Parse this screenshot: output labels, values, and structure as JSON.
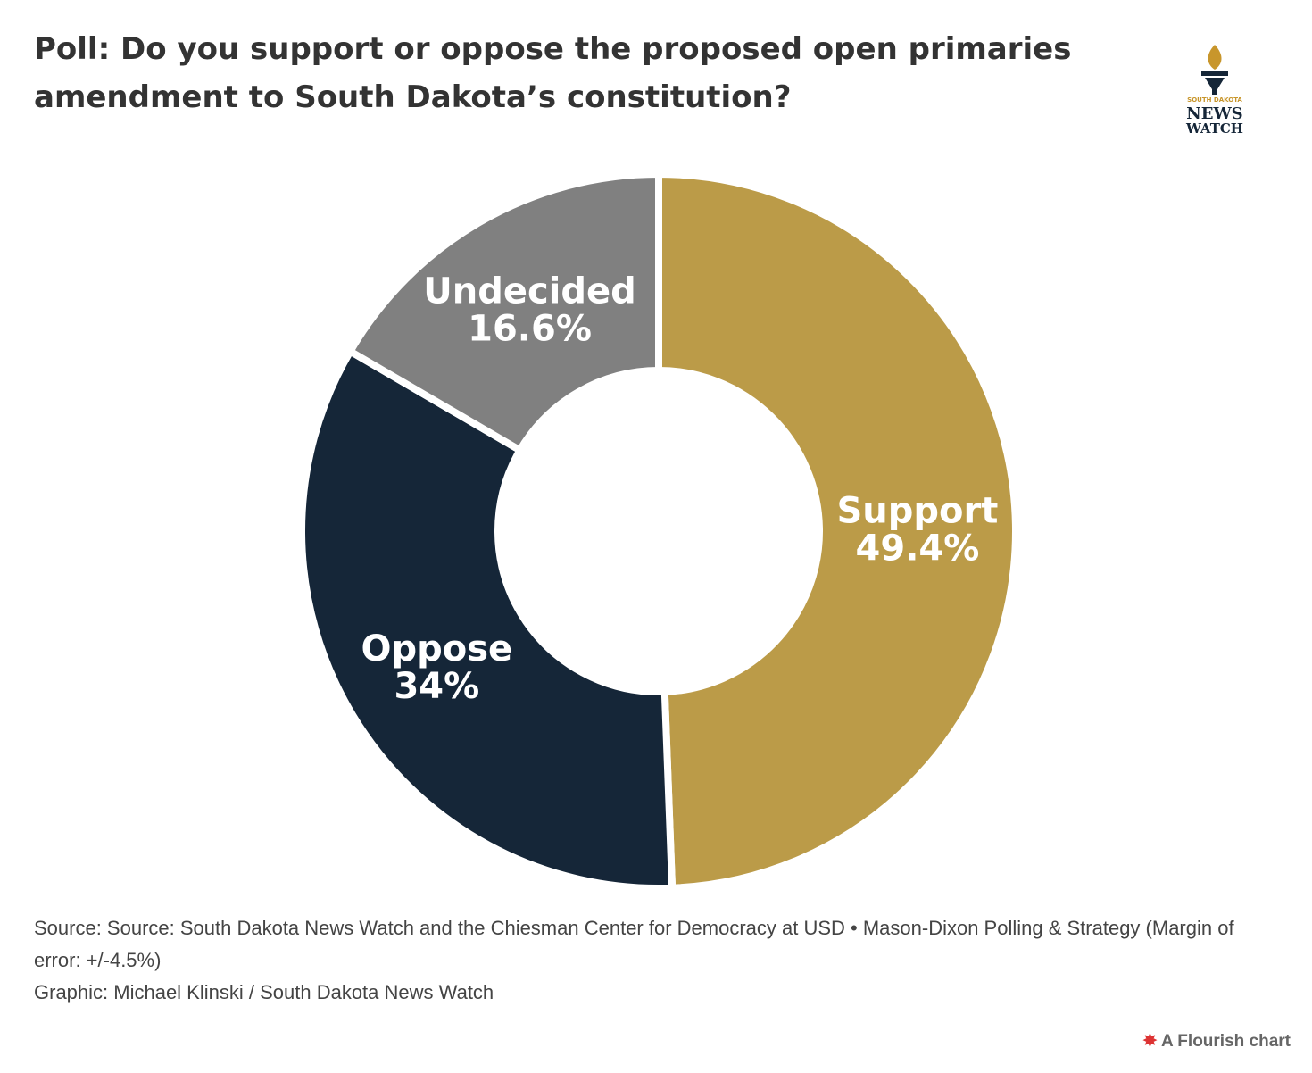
{
  "chart_data": {
    "type": "pie",
    "title": "Poll: Do you support or oppose the proposed open primaries amendment to South Dakota’s constitution?",
    "categories": [
      "Support",
      "Oppose",
      "Undecided"
    ],
    "values": [
      49.4,
      34,
      16.6
    ],
    "value_labels": [
      "49.4%",
      "34%",
      "16.6%"
    ],
    "colors": [
      "#bb9b48",
      "#152638",
      "#808080"
    ],
    "donut": true,
    "source": "Source: Source: South Dakota News Watch and the Chiesman Center for Democracy at USD • Mason-Dixon Polling & Strategy (Margin of error: +/-4.5%)",
    "credit": "Graphic: Michael Klinski / South Dakota News Watch"
  },
  "logo": {
    "line1": "SOUTH DAKOTA",
    "line2": "NEWS",
    "line3": "WATCH"
  },
  "footer": "A Flourish chart"
}
